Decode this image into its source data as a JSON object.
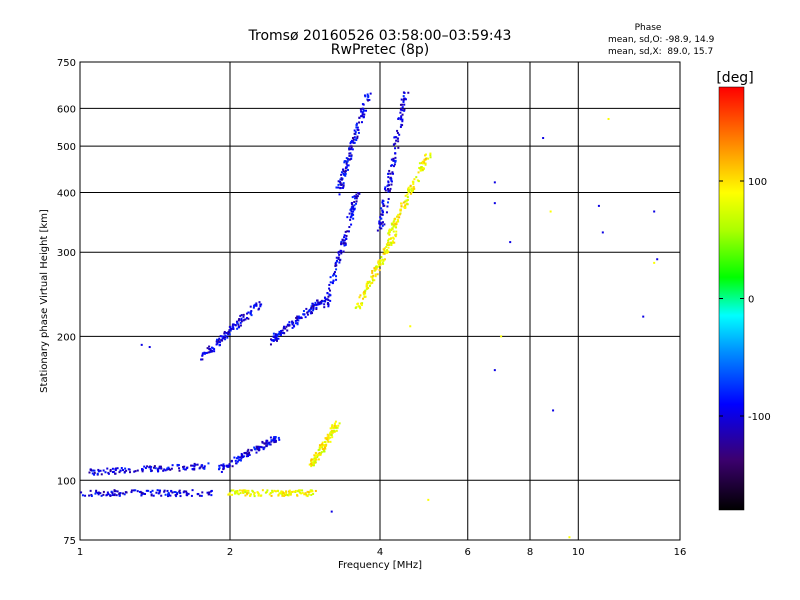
{
  "chart_data": {
    "type": "scatter",
    "title": "Tromsø 20160526 03:58:00–03:59:43",
    "subtitle": "RwPretec (8p)",
    "xlabel": "Frequency [MHz]",
    "ylabel": "Stationary phase Virtual Height [km]",
    "xscale": "log",
    "yscale": "log",
    "xlim": [
      1,
      16
    ],
    "ylim": [
      75,
      750
    ],
    "x_ticks": [
      1,
      2,
      4,
      6,
      8,
      10,
      16
    ],
    "y_ticks": [
      75,
      100,
      200,
      300,
      400,
      500,
      600,
      750
    ],
    "grid": true,
    "stats": {
      "heading": "Phase",
      "line_o": "mean, sd,O: -98.9, 14.9",
      "line_x": "mean, sd,X:  89.0, 15.7"
    },
    "colorbar": {
      "label": "[deg]",
      "range": [
        -180,
        180
      ],
      "ticks": [
        100,
        0,
        -100
      ]
    },
    "series": [
      {
        "mode": "O",
        "phase_deg": -98.9,
        "segments": [
          {
            "x": [
              1.0,
              1.85
            ],
            "y": [
              94,
              94
            ]
          },
          {
            "x": [
              1.05,
              1.8
            ],
            "y": [
              104,
              107
            ]
          },
          {
            "x": [
              1.9,
              2.5
            ],
            "y": [
              105,
              123
            ]
          },
          {
            "x": [
              1.75,
              2.3
            ],
            "y": [
              180,
              235
            ]
          },
          {
            "x": [
              2.4,
              3.1
            ],
            "y": [
              195,
              240
            ]
          },
          {
            "x": [
              3.1,
              3.6
            ],
            "y": [
              230,
              400
            ]
          },
          {
            "x": [
              3.3,
              3.8
            ],
            "y": [
              400,
              650
            ]
          },
          {
            "x": [
              4.0,
              4.5
            ],
            "y": [
              330,
              650
            ]
          }
        ],
        "points": [
          [
            1.33,
            192
          ],
          [
            1.38,
            190
          ],
          [
            6.8,
            420
          ],
          [
            6.8,
            380
          ],
          [
            7.3,
            315
          ],
          [
            8.5,
            520
          ],
          [
            8.9,
            140
          ],
          [
            11.0,
            375
          ],
          [
            11.2,
            330
          ],
          [
            13.5,
            220
          ],
          [
            14.2,
            365
          ],
          [
            14.4,
            290
          ],
          [
            6.8,
            170
          ],
          [
            3.2,
            86
          ]
        ]
      },
      {
        "mode": "X",
        "phase_deg": 89.0,
        "segments": [
          {
            "x": [
              2.0,
              2.95
            ],
            "y": [
              94,
              94
            ]
          },
          {
            "x": [
              2.9,
              3.3
            ],
            "y": [
              107,
              132
            ]
          },
          {
            "x": [
              3.6,
              4.3
            ],
            "y": [
              230,
              330
            ]
          },
          {
            "x": [
              4.2,
              5.0
            ],
            "y": [
              330,
              480
            ]
          }
        ],
        "points": [
          [
            5.0,
            91
          ],
          [
            8.8,
            365
          ],
          [
            9.6,
            76
          ],
          [
            11.5,
            570
          ],
          [
            14.2,
            285
          ],
          [
            7.0,
            200
          ],
          [
            4.6,
            210
          ]
        ]
      }
    ]
  }
}
